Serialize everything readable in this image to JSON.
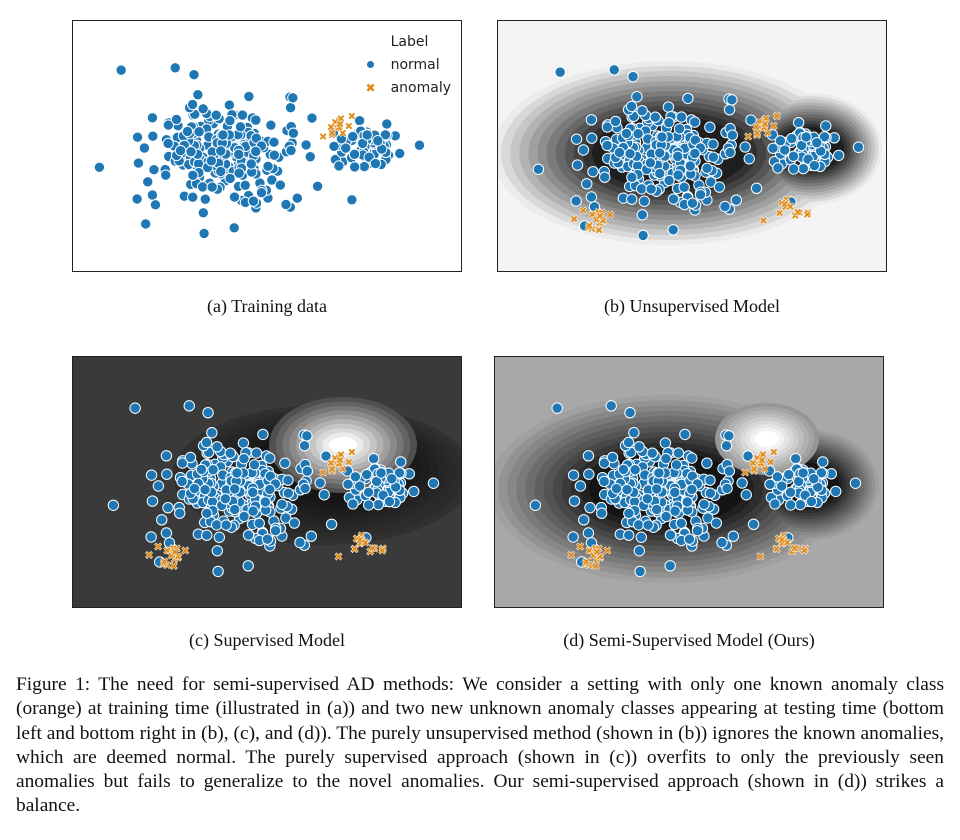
{
  "panels": [
    {
      "id": "a",
      "caption": "(a)  Training data",
      "background": "#ffffff",
      "field": "none"
    },
    {
      "id": "b",
      "caption": "(b)  Unsupervised Model",
      "background": "#f4f4f4",
      "field": "unsupervised"
    },
    {
      "id": "c",
      "caption": "(c)  Supervised Model",
      "background": "#3a3a3a",
      "field": "supervised"
    },
    {
      "id": "d",
      "caption": "(d)  Semi-Supervised Model (Ours)",
      "background": "#a8a8a8",
      "field": "semi"
    }
  ],
  "legend": {
    "title": "Label",
    "items": [
      {
        "label": "normal",
        "marker": "dot-icon",
        "color": "#1f77b4"
      },
      {
        "label": "anomaly",
        "marker": "x-icon",
        "color": "#e08c1a"
      }
    ]
  },
  "figure_caption": "Figure 1: The need for semi-supervised AD methods: We consider a setting with only one known anomaly class (orange) at training time (illustrated in (a)) and two new unknown anomaly classes appearing at testing time (bottom left and bottom right in (b), (c), and (d)). The purely unsupervised method (shown in (b)) ignores the known anomalies, which are deemed normal. The purely supervised approach (shown in (c)) overfits to only the previously seen anomalies but fails to generalize to the novel anomalies. Our semi-supervised approach (shown in (d)) strikes a balance.",
  "colors": {
    "normal": "#1f77b4",
    "anomaly": "#e08c1a"
  }
}
